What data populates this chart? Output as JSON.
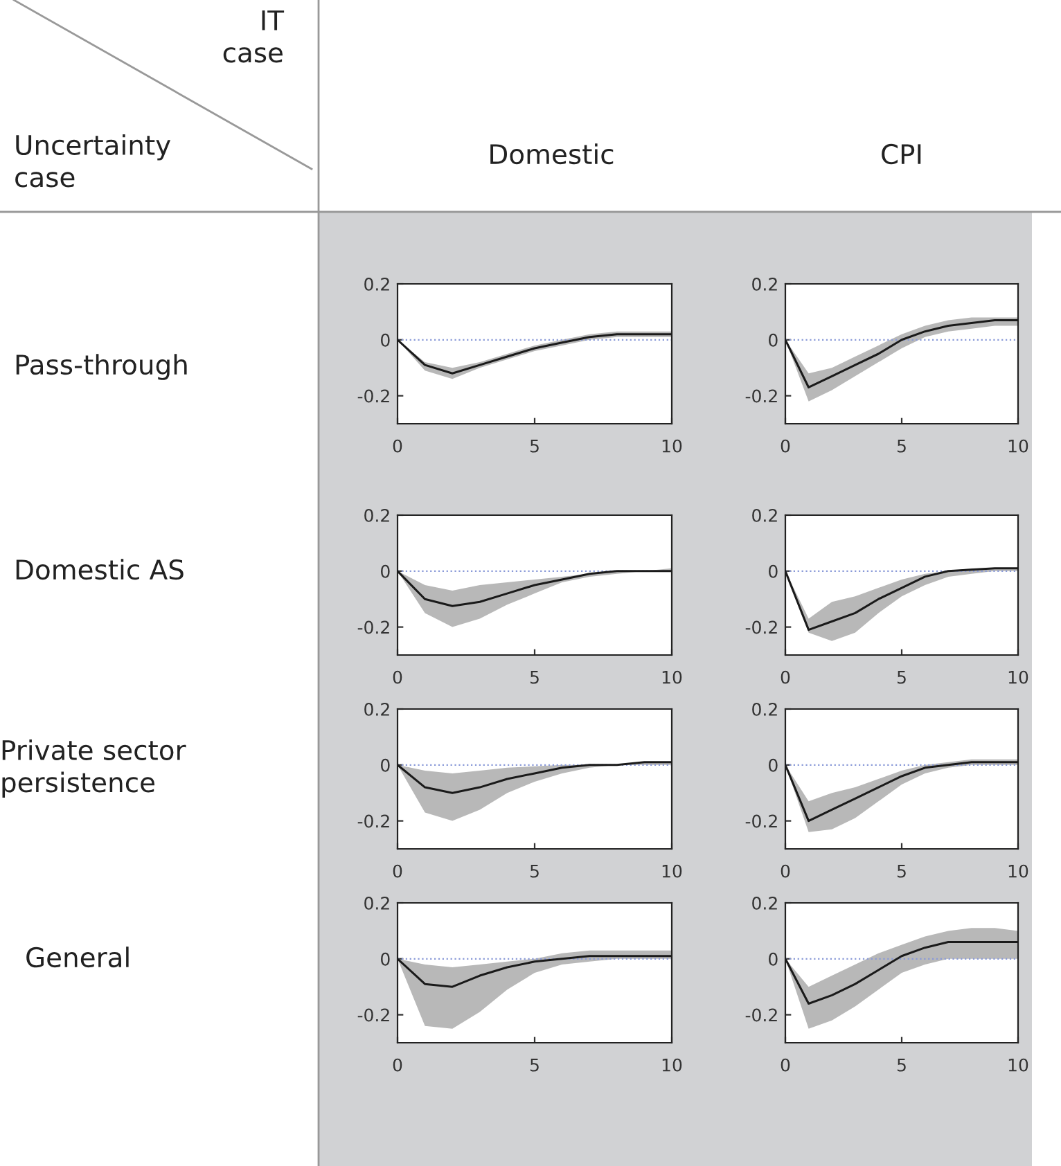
{
  "chart_data": [
    {
      "type": "other",
      "annotations": [
        "IT\ncase",
        "Uncertainty\ncase",
        "Domestic",
        "CPI",
        "Pass-through",
        "Domestic AS",
        "Private sector\npersistence",
        "General"
      ]
    },
    {
      "type": "line",
      "x": [
        0,
        1,
        2,
        3,
        4,
        5,
        6,
        7,
        8,
        9,
        10
      ],
      "xlim": [
        0,
        10
      ],
      "ylim": [
        -0.3,
        0.2
      ],
      "xticks": [
        0,
        5,
        10
      ],
      "yticks": [
        -0.2,
        0,
        0.2
      ],
      "grid": false,
      "ref_lines": [
        {
          "axis": "y",
          "value": 0,
          "color": "#8a9ad8",
          "line_style": "dotted"
        }
      ],
      "series": [
        {
          "color": "#1a1a1a",
          "values": [
            0,
            -0.09,
            -0.12,
            -0.09,
            -0.06,
            -0.03,
            -0.01,
            0.01,
            0.02,
            0.02,
            0.02
          ],
          "lower": [
            0,
            -0.11,
            -0.14,
            -0.1,
            -0.07,
            -0.04,
            -0.02,
            0,
            0.01,
            0.01,
            0.01
          ],
          "upper": [
            0,
            -0.08,
            -0.1,
            -0.08,
            -0.05,
            -0.02,
            0,
            0.02,
            0.03,
            0.03,
            0.03
          ]
        }
      ]
    },
    {
      "type": "line",
      "x": [
        0,
        1,
        2,
        3,
        4,
        5,
        6,
        7,
        8,
        9,
        10
      ],
      "xlim": [
        0,
        10
      ],
      "ylim": [
        -0.3,
        0.2
      ],
      "xticks": [
        0,
        5,
        10
      ],
      "yticks": [
        -0.2,
        0,
        0.2
      ],
      "grid": false,
      "ref_lines": [
        {
          "axis": "y",
          "value": 0,
          "color": "#8a9ad8",
          "line_style": "dotted"
        }
      ],
      "series": [
        {
          "color": "#1a1a1a",
          "values": [
            0,
            -0.17,
            -0.13,
            -0.09,
            -0.05,
            0,
            0.03,
            0.05,
            0.06,
            0.07,
            0.07
          ],
          "lower": [
            0,
            -0.22,
            -0.18,
            -0.13,
            -0.08,
            -0.03,
            0.01,
            0.03,
            0.04,
            0.05,
            0.05
          ],
          "upper": [
            0,
            -0.12,
            -0.1,
            -0.06,
            -0.02,
            0.02,
            0.05,
            0.07,
            0.08,
            0.08,
            0.08
          ]
        }
      ]
    },
    {
      "type": "line",
      "x": [
        0,
        1,
        2,
        3,
        4,
        5,
        6,
        7,
        8,
        9,
        10
      ],
      "xlim": [
        0,
        10
      ],
      "ylim": [
        -0.3,
        0.2
      ],
      "xticks": [
        0,
        5,
        10
      ],
      "yticks": [
        -0.2,
        0,
        0.2
      ],
      "grid": false,
      "ref_lines": [
        {
          "axis": "y",
          "value": 0,
          "color": "#8a9ad8",
          "line_style": "dotted"
        }
      ],
      "series": [
        {
          "color": "#1a1a1a",
          "values": [
            0,
            -0.1,
            -0.125,
            -0.11,
            -0.08,
            -0.05,
            -0.03,
            -0.01,
            0,
            0,
            0
          ],
          "lower": [
            0,
            -0.15,
            -0.2,
            -0.17,
            -0.12,
            -0.08,
            -0.04,
            -0.02,
            -0.01,
            0,
            0
          ],
          "upper": [
            0,
            -0.05,
            -0.07,
            -0.05,
            -0.04,
            -0.03,
            -0.02,
            -0.01,
            0,
            0,
            0.01
          ]
        }
      ]
    },
    {
      "type": "line",
      "x": [
        0,
        1,
        2,
        3,
        4,
        5,
        6,
        7,
        8,
        9,
        10
      ],
      "xlim": [
        0,
        10
      ],
      "ylim": [
        -0.3,
        0.2
      ],
      "xticks": [
        0,
        5,
        10
      ],
      "yticks": [
        -0.2,
        0,
        0.2
      ],
      "grid": false,
      "ref_lines": [
        {
          "axis": "y",
          "value": 0,
          "color": "#8a9ad8",
          "line_style": "dotted"
        }
      ],
      "series": [
        {
          "color": "#1a1a1a",
          "values": [
            0,
            -0.21,
            -0.18,
            -0.15,
            -0.1,
            -0.06,
            -0.02,
            0,
            0.005,
            0.01,
            0.01
          ],
          "lower": [
            0,
            -0.22,
            -0.25,
            -0.22,
            -0.15,
            -0.09,
            -0.05,
            -0.02,
            -0.01,
            0,
            0
          ],
          "upper": [
            0,
            -0.17,
            -0.11,
            -0.09,
            -0.06,
            -0.03,
            -0.01,
            0,
            0.01,
            0.01,
            0.01
          ]
        }
      ]
    },
    {
      "type": "line",
      "x": [
        0,
        1,
        2,
        3,
        4,
        5,
        6,
        7,
        8,
        9,
        10
      ],
      "xlim": [
        0,
        10
      ],
      "ylim": [
        -0.3,
        0.2
      ],
      "xticks": [
        0,
        5,
        10
      ],
      "yticks": [
        -0.2,
        0,
        0.2
      ],
      "grid": false,
      "ref_lines": [
        {
          "axis": "y",
          "value": 0,
          "color": "#8a9ad8",
          "line_style": "dotted"
        }
      ],
      "series": [
        {
          "color": "#1a1a1a",
          "values": [
            0,
            -0.08,
            -0.1,
            -0.08,
            -0.05,
            -0.03,
            -0.01,
            0,
            0,
            0.01,
            0.01
          ],
          "lower": [
            0,
            -0.17,
            -0.2,
            -0.16,
            -0.1,
            -0.06,
            -0.03,
            -0.01,
            0,
            0,
            0
          ],
          "upper": [
            0,
            -0.02,
            -0.03,
            -0.02,
            -0.01,
            -0.005,
            0,
            0,
            0,
            0.01,
            0.01
          ]
        }
      ]
    },
    {
      "type": "line",
      "x": [
        0,
        1,
        2,
        3,
        4,
        5,
        6,
        7,
        8,
        9,
        10
      ],
      "xlim": [
        0,
        10
      ],
      "ylim": [
        -0.3,
        0.2
      ],
      "xticks": [
        0,
        5,
        10
      ],
      "yticks": [
        -0.2,
        0,
        0.2
      ],
      "grid": false,
      "ref_lines": [
        {
          "axis": "y",
          "value": 0,
          "color": "#8a9ad8",
          "line_style": "dotted"
        }
      ],
      "series": [
        {
          "color": "#1a1a1a",
          "values": [
            0,
            -0.2,
            -0.16,
            -0.12,
            -0.08,
            -0.04,
            -0.01,
            0,
            0.01,
            0.01,
            0.01
          ],
          "lower": [
            0,
            -0.24,
            -0.23,
            -0.19,
            -0.13,
            -0.07,
            -0.03,
            -0.01,
            0,
            0,
            0
          ],
          "upper": [
            0,
            -0.13,
            -0.1,
            -0.08,
            -0.05,
            -0.02,
            0,
            0.01,
            0.02,
            0.02,
            0.02
          ]
        }
      ]
    },
    {
      "type": "line",
      "x": [
        0,
        1,
        2,
        3,
        4,
        5,
        6,
        7,
        8,
        9,
        10
      ],
      "xlim": [
        0,
        10
      ],
      "ylim": [
        -0.3,
        0.2
      ],
      "xticks": [
        0,
        5,
        10
      ],
      "yticks": [
        -0.2,
        0,
        0.2
      ],
      "grid": false,
      "ref_lines": [
        {
          "axis": "y",
          "value": 0,
          "color": "#8a9ad8",
          "line_style": "dotted"
        }
      ],
      "series": [
        {
          "color": "#1a1a1a",
          "values": [
            0,
            -0.09,
            -0.1,
            -0.06,
            -0.03,
            -0.01,
            0,
            0.01,
            0.01,
            0.01,
            0.01
          ],
          "lower": [
            0,
            -0.24,
            -0.25,
            -0.19,
            -0.11,
            -0.05,
            -0.02,
            -0.01,
            0,
            0,
            0
          ],
          "upper": [
            0,
            -0.02,
            -0.03,
            -0.02,
            -0.01,
            0,
            0.02,
            0.03,
            0.03,
            0.03,
            0.03
          ]
        }
      ]
    },
    {
      "type": "line",
      "x": [
        0,
        1,
        2,
        3,
        4,
        5,
        6,
        7,
        8,
        9,
        10
      ],
      "xlim": [
        0,
        10
      ],
      "ylim": [
        -0.3,
        0.2
      ],
      "xticks": [
        0,
        5,
        10
      ],
      "yticks": [
        -0.2,
        0,
        0.2
      ],
      "grid": false,
      "ref_lines": [
        {
          "axis": "y",
          "value": 0,
          "color": "#8a9ad8",
          "line_style": "dotted"
        }
      ],
      "series": [
        {
          "color": "#1a1a1a",
          "values": [
            0,
            -0.16,
            -0.13,
            -0.09,
            -0.04,
            0.01,
            0.04,
            0.06,
            0.06,
            0.06,
            0.06
          ],
          "lower": [
            0,
            -0.25,
            -0.22,
            -0.17,
            -0.11,
            -0.05,
            -0.02,
            0,
            0,
            0,
            0
          ],
          "upper": [
            0,
            -0.1,
            -0.06,
            -0.02,
            0.02,
            0.05,
            0.08,
            0.1,
            0.11,
            0.11,
            0.1
          ]
        }
      ]
    }
  ]
}
